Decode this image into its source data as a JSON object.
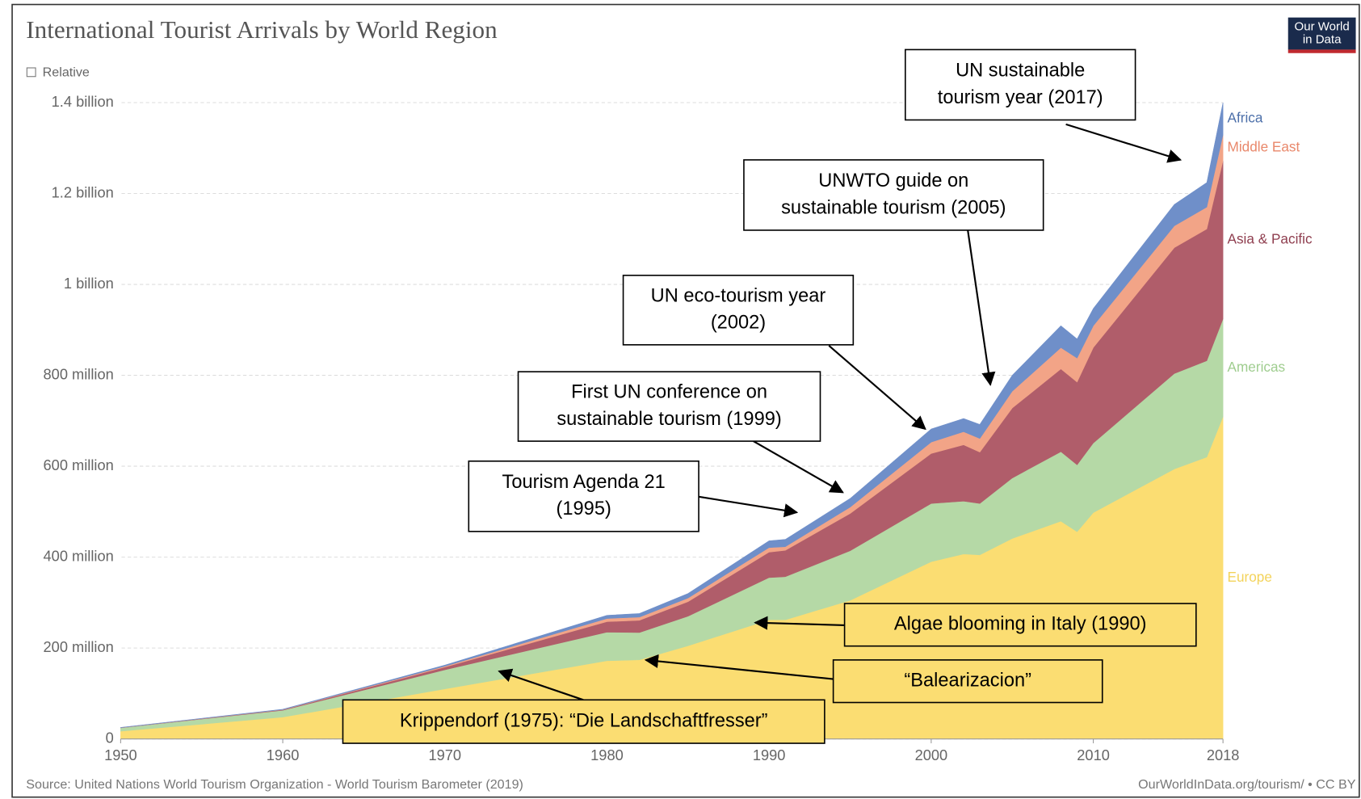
{
  "chart_data": {
    "type": "stacked_area",
    "title": "International Tourist Arrivals by World Region",
    "relative_toggle": "Relative",
    "source": "Source: United Nations World Tourism Organization - World Tourism Barometer (2019)",
    "url": "OurWorldInData.org/tourism/ • CC BY",
    "logo": [
      "Our World",
      "in Data"
    ],
    "xlim": [
      1950,
      2018
    ],
    "xticks": [
      1950,
      1960,
      1970,
      1980,
      1990,
      2000,
      2010,
      2018
    ],
    "ylim": [
      0,
      1400000000
    ],
    "yticks": [
      0,
      {
        "value": 200000000,
        "label": "200 million"
      },
      {
        "value": 400000000,
        "label": "400 million"
      },
      {
        "value": 600000000,
        "label": "600 million"
      },
      {
        "value": 800000000,
        "label": "800 million"
      },
      {
        "value": 1000000000,
        "label": "1 billion"
      },
      {
        "value": 1200000000,
        "label": "1.2 billion"
      },
      {
        "value": 1400000000,
        "label": "1.4 billion"
      }
    ],
    "grid": true,
    "x": [
      1950,
      1960,
      1970,
      1980,
      1982,
      1985,
      1990,
      1991,
      1995,
      2000,
      2002,
      2003,
      2005,
      2008,
      2009,
      2010,
      2015,
      2017,
      2018
    ],
    "series": [
      {
        "name": "Europe",
        "color": "#fbdd72",
        "label_color": "#f3d35a",
        "values": [
          17000000,
          48000000,
          110000000,
          172000000,
          174000000,
          205000000,
          262000000,
          262000000,
          305000000,
          390000000,
          407000000,
          405000000,
          441000000,
          479000000,
          456000000,
          498000000,
          594000000,
          620000000,
          709000000
        ]
      },
      {
        "name": "Americas",
        "color": "#b5d9a6",
        "label_color": "#9fcd8f",
        "values": [
          7500000,
          15000000,
          42000000,
          63000000,
          60000000,
          65000000,
          93000000,
          95000000,
          109000000,
          128000000,
          116000000,
          113000000,
          133000000,
          153000000,
          147000000,
          153000000,
          210000000,
          212000000,
          215000000
        ]
      },
      {
        "name": "Asia & Pacific",
        "color": "#b05d6a",
        "label_color": "#8f3e4f",
        "values": [
          200000,
          1000000,
          6000000,
          23000000,
          27000000,
          32000000,
          56000000,
          58000000,
          82000000,
          110000000,
          124000000,
          113000000,
          154000000,
          182000000,
          182000000,
          210000000,
          277000000,
          290000000,
          348000000
        ]
      },
      {
        "name": "Middle East",
        "color": "#f2a487",
        "label_color": "#e9886b",
        "values": [
          200000,
          600000,
          2000000,
          7000000,
          7000000,
          8000000,
          10000000,
          8000000,
          14000000,
          25000000,
          29000000,
          30000000,
          37000000,
          47000000,
          53000000,
          48000000,
          48000000,
          48000000,
          57000000
        ]
      },
      {
        "name": "Africa",
        "color": "#6f8fc9",
        "label_color": "#4c6fa9",
        "values": [
          500000,
          700000,
          2400000,
          7000000,
          8000000,
          10000000,
          15000000,
          16000000,
          19000000,
          29000000,
          29000000,
          31000000,
          35000000,
          48000000,
          42000000,
          38000000,
          47000000,
          54000000,
          71000000
        ]
      }
    ],
    "annotations": [
      {
        "lines": [
          "UN sustainable",
          "tourism year (2017)"
        ]
      },
      {
        "lines": [
          "UNWTO guide on",
          "sustainable tourism (2005)"
        ]
      },
      {
        "lines": [
          "UN eco-tourism year",
          "(2002)"
        ]
      },
      {
        "lines": [
          "First UN conference on",
          "sustainable tourism (1999)"
        ]
      },
      {
        "lines": [
          "Tourism Agenda 21",
          "(1995)"
        ]
      },
      {
        "lines": [
          "Algae blooming in Italy (1990)"
        ]
      },
      {
        "lines": [
          "“Balearizacion”"
        ]
      },
      {
        "lines": [
          "Krippendorf (1975): “Die Landschaftfresser”"
        ]
      }
    ]
  }
}
